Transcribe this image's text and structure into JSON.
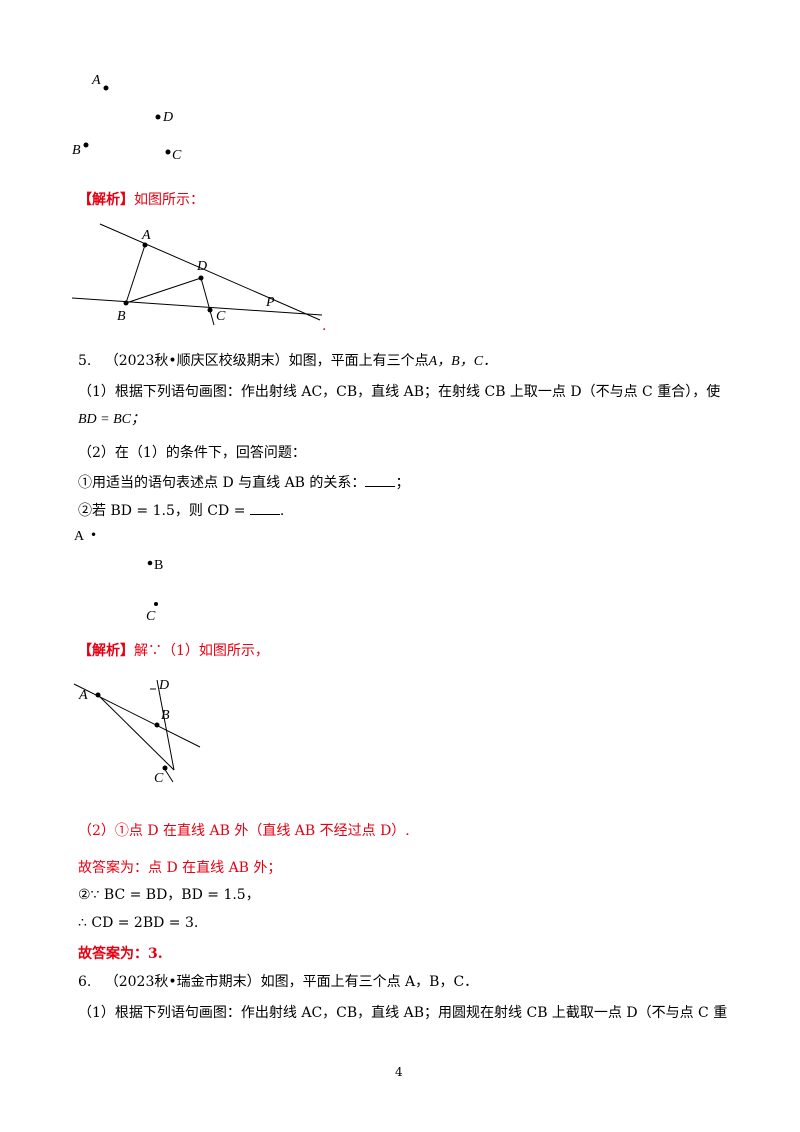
{
  "fig1": {
    "A": "A",
    "B": "B",
    "C": "C",
    "D": "D"
  },
  "analysis1": {
    "tag": "【解析】",
    "text": "如图所示："
  },
  "fig2": {
    "A": "A",
    "B": "B",
    "C": "C",
    "D": "D",
    "P": "P",
    "dot": "."
  },
  "q5": {
    "number": "5.",
    "source": "（2023秋•顺庆区校级期末）如图，平面上有三个点",
    "points": "A，B，C．",
    "part1": "（1）根据下列语句画图：作出射线 AC，CB，直线 AB；在射线 CB 上取一点 D（不与点 C 重合），使",
    "part1_cont": "BD = BC；",
    "part2": "（2）在（1）的条件下，回答问题：",
    "sub1_pre": "①用适当的语句表述点 D 与直线 AB 的关系：",
    "sub1_post": "；",
    "sub2_pre": "②若 BD = 1.5，则 CD =",
    "sub2_post": "."
  },
  "fig3": {
    "A": "A",
    "B": "B",
    "C": "C",
    "bullet": "•"
  },
  "analysis2": {
    "tag": "【解析】",
    "text": "解∵（1）如图所示，"
  },
  "fig4": {
    "A": "A",
    "B": "B",
    "C": "C",
    "D": "D"
  },
  "answers": {
    "a1": "（2）①点 D 在直线 AB 外（直线 AB 不经过点 D）.",
    "a2": "故答案为：点 D 在直线 AB 外；",
    "a3": "②∵ BC = BD，BD = 1.5，",
    "a4": "∴ CD = 2BD = 3.",
    "a5": "故答案为：3."
  },
  "q6": {
    "number": "6.",
    "source": "（2023秋•瑞金市期末）如图，平面上有三个点 A，B，C．",
    "part1": "（1）根据下列语句画图：作出射线 AC，CB，直线 AB；用圆规在射线 CB 上截取一点 D（不与点 C 重"
  },
  "page_number": "4"
}
